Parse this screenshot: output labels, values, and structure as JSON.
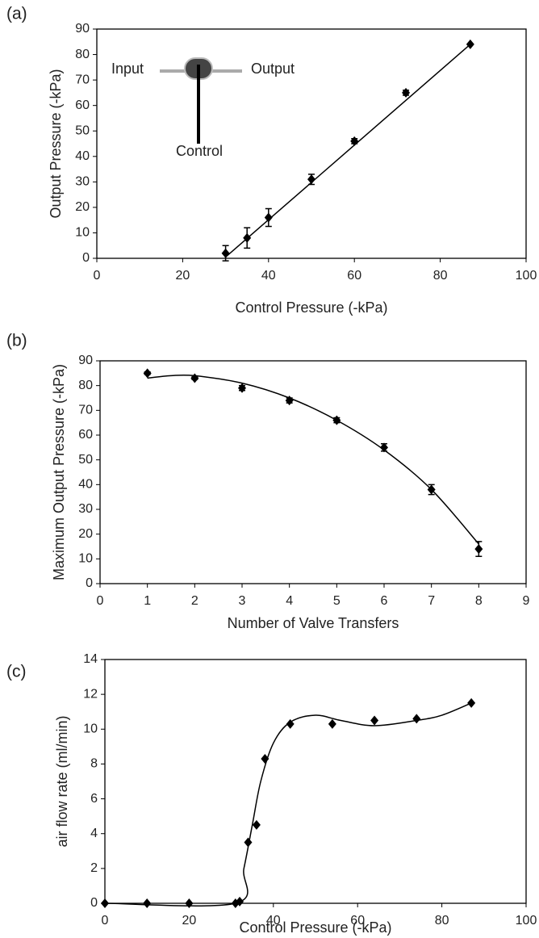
{
  "chart_data": [
    {
      "type": "scatter",
      "panel": "(a)",
      "x_label": "Control Pressure (-kPa)",
      "y_label": "Output Pressure (-kPa)",
      "xlim": [
        0,
        100
      ],
      "xticks": [
        0,
        20,
        40,
        60,
        80,
        100
      ],
      "ylim": [
        0,
        90
      ],
      "yticks": [
        0,
        10,
        20,
        30,
        40,
        50,
        60,
        70,
        80,
        90
      ],
      "annotations": [
        "Input",
        "Output",
        "Control"
      ],
      "series": [
        {
          "type": "scatter",
          "color": "#000000",
          "x": [
            30,
            35,
            40,
            50,
            60,
            72,
            87
          ],
          "values": [
            2,
            8,
            16,
            31,
            46,
            65,
            84
          ],
          "errors": [
            3,
            4,
            3.5,
            2,
            1,
            1,
            0
          ]
        },
        {
          "type": "line",
          "color": "#000000",
          "x": [
            30,
            87
          ],
          "values": [
            0.5,
            84
          ]
        }
      ]
    },
    {
      "type": "scatter",
      "panel": "(b)",
      "x_label": "Number of Valve Transfers",
      "y_label": "Maximum  Output Pressure (-kPa)",
      "xlim": [
        0,
        9
      ],
      "xticks": [
        0,
        1,
        2,
        3,
        4,
        5,
        6,
        7,
        8,
        9
      ],
      "ylim": [
        0,
        90
      ],
      "yticks": [
        0,
        10,
        20,
        30,
        40,
        50,
        60,
        70,
        80,
        90
      ],
      "series": [
        {
          "type": "scatter",
          "color": "#000000",
          "x": [
            1,
            2,
            3,
            4,
            5,
            6,
            7,
            8
          ],
          "values": [
            85,
            83,
            79,
            74,
            66,
            55,
            38,
            14
          ],
          "errors": [
            0.5,
            0.5,
            1,
            1,
            1,
            1.5,
            2,
            3
          ]
        },
        {
          "type": "line",
          "color": "#000000",
          "x": [
            1,
            1.5,
            2,
            3,
            4,
            5,
            6,
            7,
            8
          ],
          "values": [
            83,
            84,
            84,
            81,
            75,
            66,
            54,
            38,
            16
          ]
        }
      ]
    },
    {
      "type": "scatter",
      "panel": "(c)",
      "x_label": "Control Pressure (-kPa)",
      "y_label": "air flow rate (ml/min)",
      "xlim": [
        0,
        100
      ],
      "xticks": [
        0,
        20,
        40,
        60,
        80,
        100
      ],
      "ylim": [
        0,
        14
      ],
      "yticks": [
        0,
        2,
        4,
        6,
        8,
        10,
        12,
        14
      ],
      "series": [
        {
          "type": "scatter",
          "color": "#000000",
          "x": [
            0,
            10,
            20,
            31,
            32,
            34,
            36,
            38,
            44,
            54,
            64,
            74,
            87
          ],
          "values": [
            0,
            0,
            0,
            0,
            0.1,
            3.5,
            4.5,
            8.3,
            10.3,
            10.3,
            10.5,
            10.6,
            11.5
          ]
        },
        {
          "type": "line",
          "color": "#000000",
          "x": [
            0,
            31,
            33,
            35,
            37,
            40,
            44,
            50,
            56,
            64,
            74,
            80,
            87
          ],
          "values": [
            0,
            0,
            2,
            4.5,
            7,
            9.2,
            10.4,
            10.8,
            10.5,
            10.2,
            10.5,
            10.8,
            11.5
          ]
        }
      ]
    }
  ]
}
